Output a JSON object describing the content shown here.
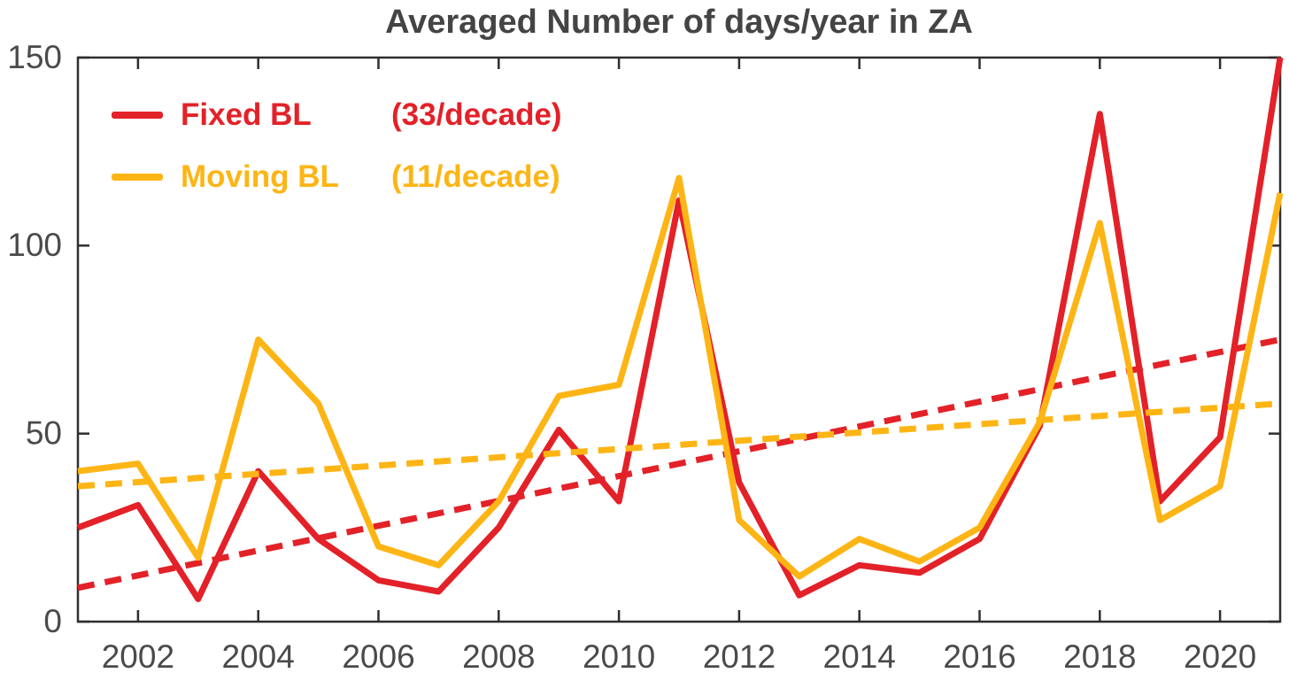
{
  "chart_data": {
    "type": "line",
    "title": "Averaged Number of days/year in ZA",
    "x": [
      2001,
      2002,
      2003,
      2004,
      2005,
      2006,
      2007,
      2008,
      2009,
      2010,
      2011,
      2012,
      2013,
      2014,
      2015,
      2016,
      2017,
      2018,
      2019,
      2020,
      2021
    ],
    "series": [
      {
        "legend_name": "Fixed BL",
        "rate_label": "(33/decade)",
        "color": "#e32128",
        "style": "solid",
        "values": [
          25,
          31,
          6,
          40,
          22,
          11,
          8,
          25,
          51,
          32,
          112,
          37,
          7,
          15,
          13,
          22,
          52,
          135,
          32,
          49,
          150
        ]
      },
      {
        "legend_name": "Moving BL",
        "rate_label": "(11/decade)",
        "color": "#fdb515",
        "style": "solid",
        "values": [
          40,
          42,
          17,
          75,
          58,
          20,
          15,
          32,
          60,
          63,
          118,
          27,
          12,
          22,
          16,
          25,
          53,
          106,
          27,
          36,
          114
        ]
      }
    ],
    "trend_lines": [
      {
        "for": "Fixed BL",
        "style": "dashed",
        "color": "#e32128",
        "slope_per_decade": 33,
        "x": [
          2001,
          2021
        ],
        "y": [
          9,
          75
        ]
      },
      {
        "for": "Moving BL",
        "style": "dashed",
        "color": "#fdb515",
        "slope_per_decade": 11,
        "x": [
          2001,
          2021
        ],
        "y": [
          36,
          58
        ]
      }
    ],
    "xlim": [
      2001,
      2021
    ],
    "ylim": [
      0,
      150
    ],
    "xtick_values": [
      2002,
      2004,
      2006,
      2008,
      2010,
      2012,
      2014,
      2016,
      2018,
      2020
    ],
    "xtick_labels": [
      "2002",
      "2004",
      "2006",
      "2008",
      "2010",
      "2012",
      "2014",
      "2016",
      "2018",
      "2020"
    ],
    "ytick_values": [
      0,
      50,
      100,
      150
    ],
    "ytick_labels": [
      "0",
      "50",
      "100",
      "150"
    ],
    "grid": false,
    "legend_position": "top-left",
    "axis_color": "#2e2e2e",
    "tick_label_color": "#4a4a4a"
  }
}
